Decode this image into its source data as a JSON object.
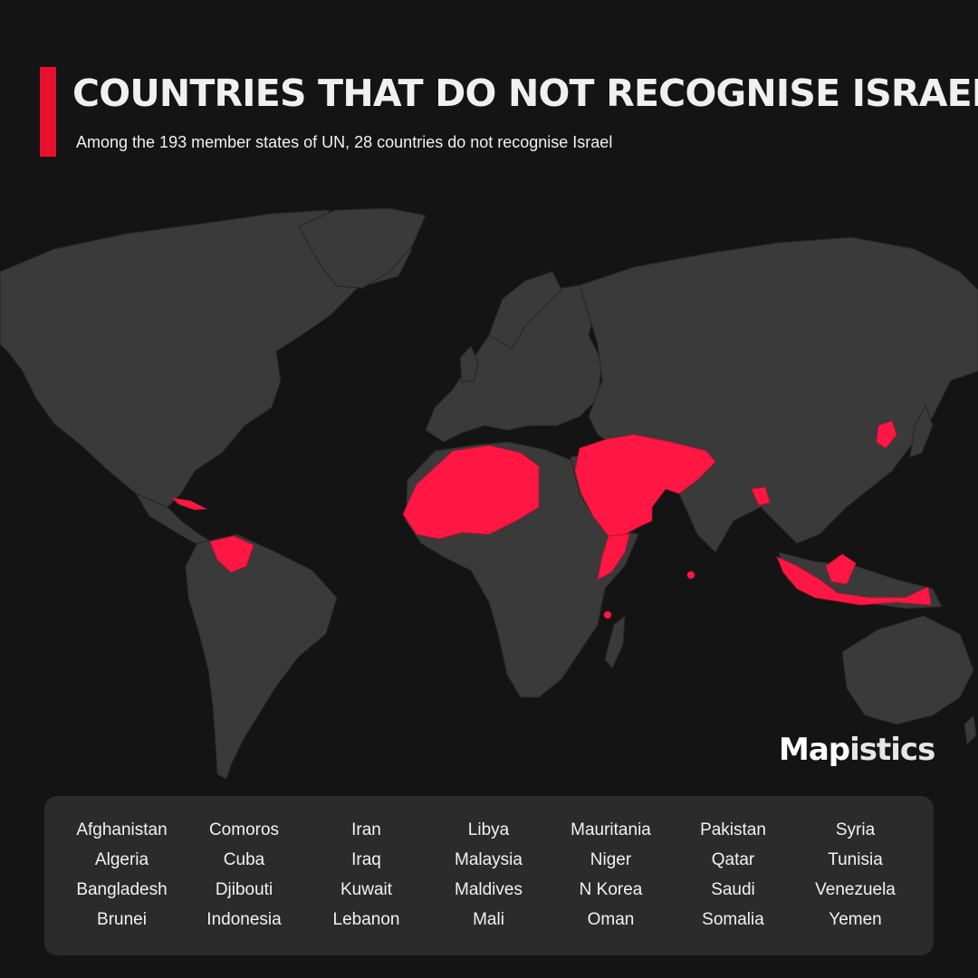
{
  "header": {
    "title": "COUNTRIES THAT DO NOT RECOGNISE ISRAEL",
    "subtitle": "Among the 193 member states of UN, 28 countries do not recognise Israel",
    "accent_color": "#e8112d"
  },
  "map": {
    "land_color": "#3a3a3a",
    "highlight_color": "#ff1744",
    "highlighted_countries": [
      "Afghanistan",
      "Algeria",
      "Bangladesh",
      "Brunei",
      "Comoros",
      "Cuba",
      "Djibouti",
      "Indonesia",
      "Iran",
      "Iraq",
      "Kuwait",
      "Lebanon",
      "Libya",
      "Malaysia",
      "Maldives",
      "Mali",
      "Mauritania",
      "Niger",
      "N Korea",
      "Oman",
      "Pakistan",
      "Qatar",
      "Saudi",
      "Somalia",
      "Syria",
      "Tunisia",
      "Venezuela",
      "Yemen"
    ]
  },
  "brand": {
    "part1": "Map",
    "part2": "istics"
  },
  "legend": {
    "countries": [
      "Afghanistan",
      "Algeria",
      "Bangladesh",
      "Brunei",
      "Comoros",
      "Cuba",
      "Djibouti",
      "Indonesia",
      "Iran",
      "Iraq",
      "Kuwait",
      "Lebanon",
      "Libya",
      "Malaysia",
      "Maldives",
      "Mali",
      "Mauritania",
      "Niger",
      "N Korea",
      "Oman",
      "Pakistan",
      "Qatar",
      "Saudi",
      "Somalia",
      "Syria",
      "Tunisia",
      "Venezuela",
      "Yemen"
    ]
  }
}
